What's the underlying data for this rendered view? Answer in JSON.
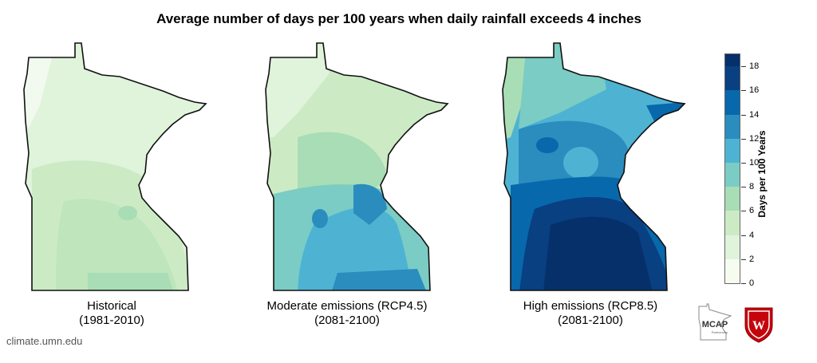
{
  "title": "Average number of days per 100 years when daily rainfall exceeds 4 inches",
  "maps": [
    {
      "label": "Historical",
      "period": "(1981-2010)",
      "scenario": "historical"
    },
    {
      "label": "Moderate emissions (RCP4.5)",
      "period": "(2081-2100)",
      "scenario": "rcp45"
    },
    {
      "label": "High emissions (RCP8.5)",
      "period": "(2081-2100)",
      "scenario": "rcp85"
    }
  ],
  "colorbar": {
    "title": "Days per 100 Years",
    "ticks": [
      "0",
      "2",
      "4",
      "6",
      "8",
      "10",
      "12",
      "14",
      "16",
      "18"
    ],
    "min": 0,
    "max": 19,
    "colors": [
      "#f7fcf0",
      "#e0f3db",
      "#ccebc5",
      "#a8ddb5",
      "#7bccc4",
      "#4eb3d3",
      "#2b8cbe",
      "#0868ac",
      "#084081",
      "#06306a"
    ]
  },
  "credit": "climate.umn.edu",
  "logos": {
    "mcap": "MCAP",
    "mcap_sub": "Partnership",
    "uw": "W"
  }
}
